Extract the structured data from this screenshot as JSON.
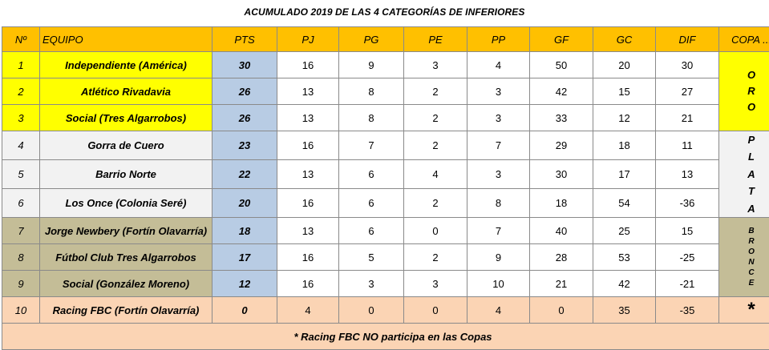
{
  "title": "ACUMULADO 2019 DE LAS 4 CATEGORÍAS DE INFERIORES",
  "headers": [
    "Nº",
    "EQUIPO",
    "PTS",
    "PJ",
    "PG",
    "PE",
    "PP",
    "GF",
    "GC",
    "DIF",
    "COPA ..."
  ],
  "rows": [
    {
      "pos": "1",
      "team": "Independiente (América)",
      "pts": "30",
      "pj": "16",
      "pg": "9",
      "pe": "3",
      "pp": "4",
      "gf": "50",
      "gc": "20",
      "dif": "30"
    },
    {
      "pos": "2",
      "team": "Atlético Rivadavia",
      "pts": "26",
      "pj": "13",
      "pg": "8",
      "pe": "2",
      "pp": "3",
      "gf": "42",
      "gc": "15",
      "dif": "27"
    },
    {
      "pos": "3",
      "team": "Social (Tres Algarrobos)",
      "pts": "26",
      "pj": "13",
      "pg": "8",
      "pe": "2",
      "pp": "3",
      "gf": "33",
      "gc": "12",
      "dif": "21"
    },
    {
      "pos": "4",
      "team": "Gorra de Cuero",
      "pts": "23",
      "pj": "16",
      "pg": "7",
      "pe": "2",
      "pp": "7",
      "gf": "29",
      "gc": "18",
      "dif": "11"
    },
    {
      "pos": "5",
      "team": "Barrio Norte",
      "pts": "22",
      "pj": "13",
      "pg": "6",
      "pe": "4",
      "pp": "3",
      "gf": "30",
      "gc": "17",
      "dif": "13"
    },
    {
      "pos": "6",
      "team": "Los Once (Colonia Seré)",
      "pts": "20",
      "pj": "16",
      "pg": "6",
      "pe": "2",
      "pp": "8",
      "gf": "18",
      "gc": "54",
      "dif": "-36"
    },
    {
      "pos": "7",
      "team": "Jorge Newbery (Fortín Olavarría)",
      "pts": "18",
      "pj": "13",
      "pg": "6",
      "pe": "0",
      "pp": "7",
      "gf": "40",
      "gc": "25",
      "dif": "15"
    },
    {
      "pos": "8",
      "team": "Fútbol Club Tres Algarrobos",
      "pts": "17",
      "pj": "16",
      "pg": "5",
      "pe": "2",
      "pp": "9",
      "gf": "28",
      "gc": "53",
      "dif": "-25"
    },
    {
      "pos": "9",
      "team": "Social (González Moreno)",
      "pts": "12",
      "pj": "16",
      "pg": "3",
      "pe": "3",
      "pp": "10",
      "gf": "21",
      "gc": "42",
      "dif": "-21"
    },
    {
      "pos": "10",
      "team": "Racing FBC (Fortín Olavarría)",
      "pts": "0",
      "pj": "4",
      "pg": "0",
      "pe": "0",
      "pp": "4",
      "gf": "0",
      "gc": "35",
      "dif": "-35"
    }
  ],
  "cups": {
    "oro": [
      "O",
      "R",
      "O"
    ],
    "plata": [
      "P",
      "L",
      "A",
      "T",
      "A"
    ],
    "bronce": [
      "B",
      "R",
      "O",
      "N",
      "C",
      "E"
    ],
    "none": "*"
  },
  "footnote": "* Racing FBC NO participa en las Copas",
  "colors": {
    "header": "#ffc000",
    "oro": "#ffff00",
    "plata": "#f2f2f2",
    "bronce": "#c4bd97",
    "excluded": "#fbd4b4",
    "pts_column": "#b8cce4"
  }
}
